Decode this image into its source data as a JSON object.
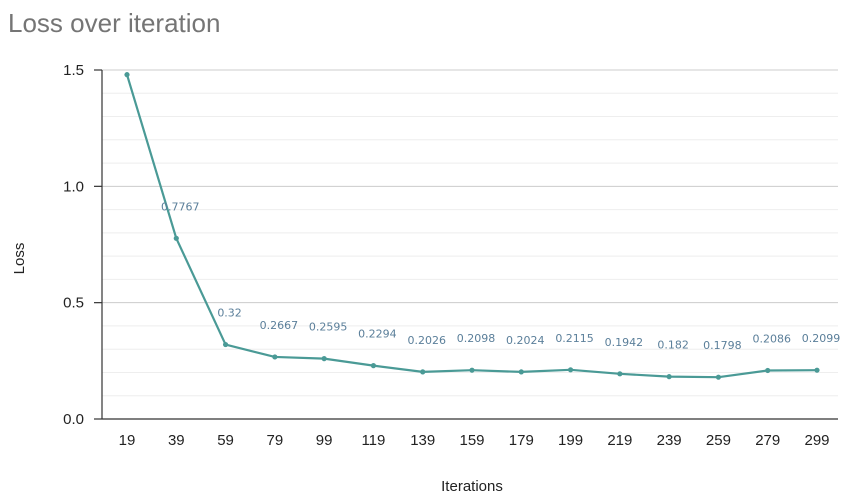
{
  "chart_data": {
    "type": "line",
    "title": "Loss over iteration",
    "xlabel": "Iterations",
    "ylabel": "Loss",
    "x": [
      19,
      39,
      59,
      79,
      99,
      119,
      139,
      159,
      179,
      199,
      219,
      239,
      259,
      279,
      299
    ],
    "x_tick_labels": [
      "19",
      "39",
      "59",
      "79",
      "99",
      "119",
      "139",
      "159",
      "179",
      "199",
      "219",
      "239",
      "259",
      "279",
      "299"
    ],
    "series": [
      {
        "values": [
          1.48,
          0.7767,
          0.32,
          0.2667,
          0.2595,
          0.2294,
          0.2026,
          0.2098,
          0.2024,
          0.2115,
          0.1942,
          0.182,
          0.1798,
          0.2086,
          0.2099
        ],
        "data_labels": [
          "",
          "0.7767",
          "0.32",
          "0.2667",
          "0.2595",
          "0.2294",
          "0.2026",
          "0.2098",
          "0.2024",
          "0.2115",
          "0.1942",
          "0.182",
          "0.1798",
          "0.2086",
          "0.2099"
        ],
        "color": "#4a9a96"
      }
    ],
    "ylim": [
      0,
      1.5
    ],
    "y_ticks": [
      0,
      0.5,
      1.0,
      1.5
    ],
    "y_tick_labels": [
      "0.0",
      "0.5",
      "1.0",
      "1.5"
    ],
    "grid": true,
    "minor_grid": true,
    "legend": "none",
    "colors": {
      "line": "#4a9a96",
      "data_label": "#5b7f9a",
      "grid_major": "#cccccc",
      "grid_minor": "#eeeeee",
      "axis": "#333333",
      "title": "#757575"
    }
  }
}
